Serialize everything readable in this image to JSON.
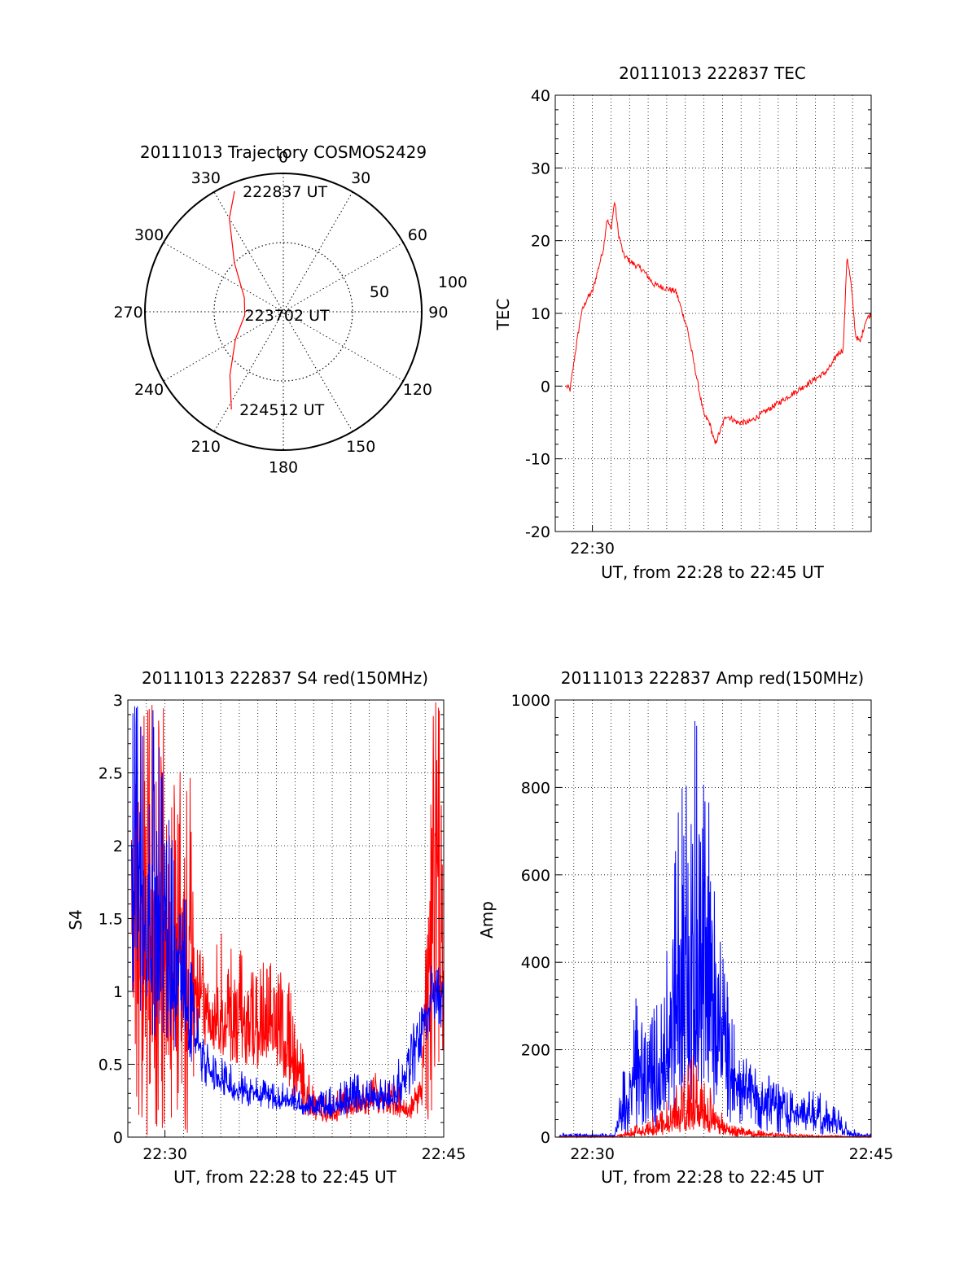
{
  "chart_data": [
    {
      "type": "polar",
      "title": "20111013 Trajectory COSMOS2429",
      "angle_labels": [
        "0",
        "30",
        "60",
        "90",
        "120",
        "150",
        "180",
        "210",
        "240",
        "270",
        "300",
        "330"
      ],
      "radial_labels": [
        "50",
        "100"
      ],
      "radial_range": [
        0,
        100
      ],
      "grid": true,
      "series": [
        {
          "color": "#ff0000",
          "points": [
            [
              -22,
              94
            ],
            [
              -30,
              78
            ],
            [
              -45,
              50
            ],
            [
              -70,
              30
            ],
            [
              -95,
              28
            ],
            [
              -120,
              40
            ],
            [
              -140,
              60
            ],
            [
              -152,
              80
            ]
          ]
        }
      ],
      "annotations": [
        {
          "text": "222837 UT",
          "azimuth": -22,
          "radius": 94
        },
        {
          "text": "223702 UT",
          "azimuth": -95,
          "radius": 28
        },
        {
          "text": "224512 UT",
          "azimuth": -152,
          "radius": 80
        }
      ]
    },
    {
      "type": "line",
      "title": "20111013 222837 TEC",
      "xlabel": "UT, from 22:28 to 22:45 UT",
      "ylabel": "TEC",
      "xlim": [
        22.4667,
        22.75
      ],
      "ylim": [
        -20,
        40
      ],
      "yticks": [
        -20,
        -10,
        0,
        10,
        20,
        30,
        40
      ],
      "xticks": [
        {
          "value": 22.5,
          "label": "22:30"
        }
      ],
      "grid": true,
      "series": [
        {
          "color": "#ff0000",
          "x": [
            22.4767,
            22.48,
            22.485,
            22.49,
            22.495,
            22.5,
            22.505,
            22.51,
            22.513,
            22.5167,
            22.52,
            22.5233,
            22.528,
            22.535,
            22.545,
            22.555,
            22.565,
            22.575,
            22.585,
            22.59,
            22.595,
            22.6,
            22.605,
            22.61,
            22.62,
            22.63,
            22.64,
            22.65,
            22.66,
            22.67,
            22.68,
            22.69,
            22.7,
            22.71,
            22.715,
            22.72,
            22.725,
            22.7283,
            22.732,
            22.736,
            22.74,
            22.745,
            22.75
          ],
          "y": [
            0,
            -0.5,
            5,
            10,
            12,
            13,
            16,
            19,
            23,
            21.5,
            25.5,
            21,
            18,
            17,
            16,
            14,
            13.5,
            13,
            8,
            4,
            0,
            -4,
            -5,
            -8,
            -4,
            -5,
            -5,
            -4,
            -3,
            -2,
            -1,
            0,
            1,
            2,
            3,
            4.5,
            5,
            18,
            14,
            7,
            6,
            9,
            10
          ]
        }
      ]
    },
    {
      "type": "line",
      "title": "20111013 222837 S4 red(150MHz)",
      "xlabel": "UT, from 22:28 to 22:45 UT",
      "ylabel": "S4",
      "xlim": [
        22.4667,
        22.75
      ],
      "ylim": [
        0,
        3
      ],
      "yticks": [
        0,
        0.5,
        1,
        1.5,
        2,
        2.5,
        3
      ],
      "ytick_labels": [
        "0",
        "0.5",
        "1",
        "1.5",
        "2",
        "2.5",
        "3"
      ],
      "xticks": [
        {
          "value": 22.5,
          "label": "22:30"
        },
        {
          "value": 22.75,
          "label": "22:45"
        }
      ],
      "grid": true,
      "series": [
        {
          "color": "#ff0000",
          "x": [
            22.47,
            22.48,
            22.49,
            22.5,
            22.51,
            22.52,
            22.53,
            22.54,
            22.55,
            22.56,
            22.57,
            22.58,
            22.59,
            22.6,
            22.61,
            22.62,
            22.63,
            22.64,
            22.65,
            22.66,
            22.67,
            22.68,
            22.69,
            22.7,
            22.71,
            22.72,
            22.73,
            22.74,
            22.75
          ],
          "y": [
            1.5,
            1.3,
            1.2,
            1.1,
            1.2,
            1.1,
            0.95,
            0.85,
            0.8,
            0.75,
            0.75,
            0.7,
            0.7,
            0.7,
            0.55,
            0.45,
            0.2,
            0.15,
            0.15,
            0.2,
            0.2,
            0.25,
            0.3,
            0.25,
            0.2,
            0.2,
            0.3,
            2.0,
            0.9
          ],
          "upper": [
            3.0,
            3.0,
            3.0,
            3.0,
            3.0,
            3.0,
            1.3,
            1.2,
            1.45,
            1.3,
            1.3,
            1.15,
            1.25,
            1.15,
            1.1,
            0.8,
            0.4,
            0.3,
            0.3,
            0.35,
            0.35,
            0.4,
            0.45,
            0.4,
            0.35,
            0.35,
            0.4,
            3.0,
            3.0
          ],
          "lower": [
            0.0,
            0.0,
            0.0,
            0.0,
            0.0,
            0.0,
            0.65,
            0.6,
            0.55,
            0.5,
            0.5,
            0.45,
            0.45,
            0.5,
            0.3,
            0.2,
            0.12,
            0.1,
            0.1,
            0.12,
            0.12,
            0.15,
            0.15,
            0.15,
            0.12,
            0.12,
            0.15,
            0.0,
            0.6
          ]
        },
        {
          "color": "#0000ff",
          "x": [
            22.47,
            22.48,
            22.49,
            22.5,
            22.51,
            22.52,
            22.53,
            22.54,
            22.55,
            22.56,
            22.57,
            22.58,
            22.59,
            22.6,
            22.61,
            22.62,
            22.63,
            22.64,
            22.65,
            22.66,
            22.67,
            22.68,
            22.69,
            22.7,
            22.71,
            22.72,
            22.73,
            22.74,
            22.75
          ],
          "y": [
            1.8,
            1.6,
            1.4,
            1.25,
            1.1,
            1.0,
            0.6,
            0.45,
            0.4,
            0.35,
            0.3,
            0.3,
            0.28,
            0.25,
            0.25,
            0.22,
            0.2,
            0.2,
            0.2,
            0.22,
            0.25,
            0.28,
            0.28,
            0.25,
            0.3,
            0.5,
            0.7,
            1.0,
            0.9
          ],
          "upper": [
            3.0,
            3.0,
            3.0,
            2.4,
            2.0,
            1.6,
            0.85,
            0.6,
            0.55,
            0.5,
            0.45,
            0.42,
            0.4,
            0.38,
            0.38,
            0.35,
            0.3,
            0.35,
            0.35,
            0.4,
            0.45,
            0.4,
            0.4,
            0.4,
            0.55,
            0.7,
            1.0,
            1.3,
            1.05
          ],
          "lower": [
            0.5,
            0.6,
            0.7,
            0.6,
            0.6,
            0.55,
            0.4,
            0.32,
            0.3,
            0.25,
            0.22,
            0.2,
            0.2,
            0.18,
            0.18,
            0.15,
            0.15,
            0.14,
            0.14,
            0.15,
            0.16,
            0.18,
            0.18,
            0.18,
            0.18,
            0.3,
            0.5,
            0.8,
            0.7
          ]
        }
      ]
    },
    {
      "type": "line",
      "title": "20111013 222837 Amp red(150MHz)",
      "xlabel": "UT, from 22:28 to 22:45 UT",
      "ylabel": "Amp",
      "xlim": [
        22.4667,
        22.75
      ],
      "ylim": [
        0,
        1000
      ],
      "yticks": [
        0,
        200,
        400,
        600,
        800,
        1000
      ],
      "xticks": [
        {
          "value": 22.5,
          "label": "22:30"
        },
        {
          "value": 22.75,
          "label": "22:45"
        }
      ],
      "grid": true,
      "series": [
        {
          "color": "#0000ff",
          "x": [
            22.47,
            22.48,
            22.49,
            22.5,
            22.51,
            22.52,
            22.53,
            22.54,
            22.55,
            22.56,
            22.57,
            22.58,
            22.59,
            22.6,
            22.61,
            22.62,
            22.63,
            22.64,
            22.65,
            22.66,
            22.67,
            22.68,
            22.69,
            22.7,
            22.71,
            22.72,
            22.73,
            22.74,
            22.75
          ],
          "y": [
            3,
            3,
            3,
            3,
            3,
            3,
            80,
            150,
            130,
            120,
            250,
            300,
            320,
            350,
            250,
            180,
            120,
            100,
            80,
            70,
            60,
            55,
            50,
            45,
            40,
            30,
            10,
            3,
            3
          ],
          "upper": [
            8,
            8,
            8,
            8,
            8,
            8,
            200,
            330,
            250,
            350,
            650,
            800,
            1000,
            950,
            550,
            400,
            220,
            180,
            150,
            140,
            120,
            110,
            100,
            110,
            90,
            70,
            30,
            8,
            8
          ],
          "lower": [
            0,
            0,
            0,
            0,
            0,
            0,
            5,
            20,
            20,
            20,
            40,
            60,
            80,
            100,
            60,
            40,
            20,
            15,
            10,
            8,
            8,
            5,
            5,
            5,
            5,
            5,
            2,
            0,
            0
          ]
        },
        {
          "color": "#ff0000",
          "x": [
            22.47,
            22.48,
            22.49,
            22.5,
            22.51,
            22.52,
            22.53,
            22.54,
            22.55,
            22.56,
            22.57,
            22.58,
            22.59,
            22.6,
            22.61,
            22.62,
            22.63,
            22.64,
            22.65,
            22.66,
            22.67,
            22.68,
            22.69,
            22.7,
            22.71,
            22.72,
            22.73,
            22.74,
            22.75
          ],
          "y": [
            1,
            1,
            1,
            1,
            1,
            1,
            5,
            10,
            15,
            20,
            30,
            45,
            55,
            50,
            30,
            15,
            10,
            8,
            5,
            5,
            4,
            3,
            3,
            2,
            2,
            2,
            1,
            1,
            1
          ],
          "upper": [
            2,
            2,
            2,
            2,
            2,
            2,
            15,
            30,
            40,
            60,
            100,
            150,
            200,
            160,
            80,
            40,
            25,
            20,
            15,
            12,
            10,
            8,
            6,
            5,
            4,
            4,
            2,
            2,
            2
          ],
          "lower": [
            0,
            0,
            0,
            0,
            0,
            0,
            0,
            0,
            2,
            3,
            5,
            10,
            15,
            12,
            5,
            2,
            1,
            0,
            0,
            0,
            0,
            0,
            0,
            0,
            0,
            0,
            0,
            0,
            0
          ]
        }
      ]
    }
  ]
}
